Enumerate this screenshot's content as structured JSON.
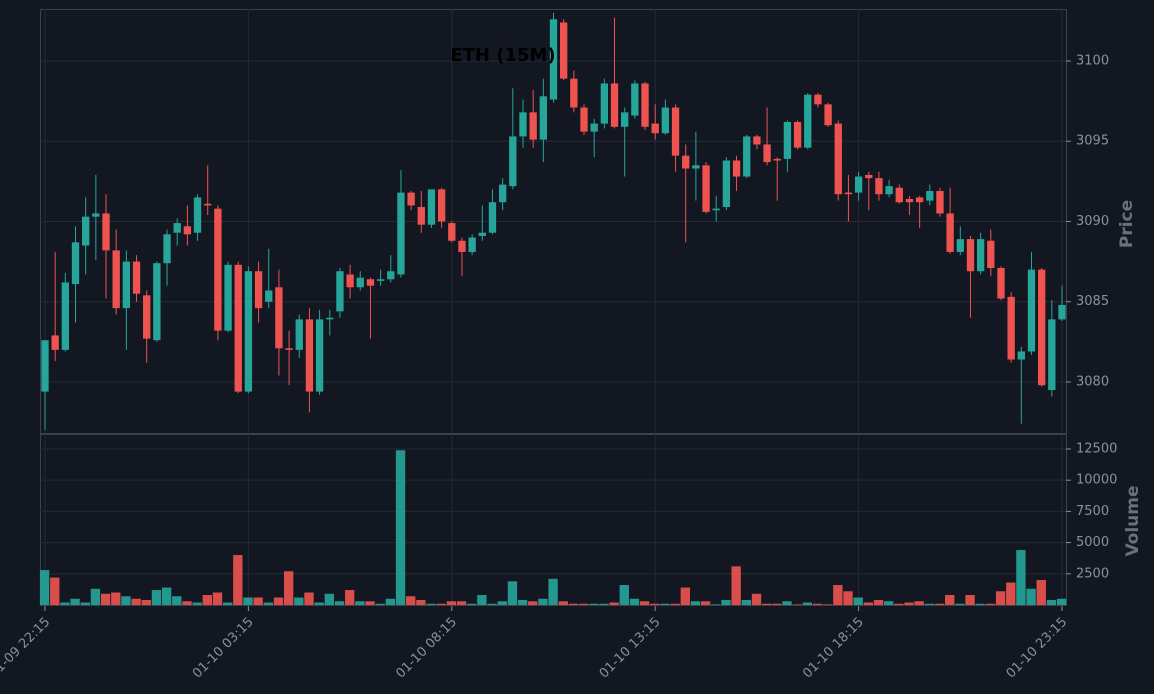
{
  "chart_data": {
    "type": "candlestick",
    "title": "ETH (15M)",
    "x": [
      "01-09 22:15",
      "01-09 22:30",
      "01-09 22:45",
      "01-09 23:00",
      "01-09 23:15",
      "01-09 23:30",
      "01-09 23:45",
      "01-10 00:00",
      "01-10 00:15",
      "01-10 00:30",
      "01-10 00:45",
      "01-10 01:00",
      "01-10 01:15",
      "01-10 01:30",
      "01-10 01:45",
      "01-10 02:00",
      "01-10 02:15",
      "01-10 02:30",
      "01-10 02:45",
      "01-10 03:00",
      "01-10 03:15",
      "01-10 03:30",
      "01-10 03:45",
      "01-10 04:00",
      "01-10 04:15",
      "01-10 04:30",
      "01-10 04:45",
      "01-10 05:00",
      "01-10 05:15",
      "01-10 05:30",
      "01-10 05:45",
      "01-10 06:00",
      "01-10 06:15",
      "01-10 06:30",
      "01-10 06:45",
      "01-10 07:00",
      "01-10 07:15",
      "01-10 07:30",
      "01-10 07:45",
      "01-10 08:00",
      "01-10 08:15",
      "01-10 08:30",
      "01-10 08:45",
      "01-10 09:00",
      "01-10 09:15",
      "01-10 09:30",
      "01-10 09:45",
      "01-10 10:00",
      "01-10 10:15",
      "01-10 10:30",
      "01-10 10:45",
      "01-10 11:00",
      "01-10 11:15",
      "01-10 11:30",
      "01-10 11:45",
      "01-10 12:00",
      "01-10 12:15",
      "01-10 12:30",
      "01-10 12:45",
      "01-10 13:00",
      "01-10 13:15",
      "01-10 13:30",
      "01-10 13:45",
      "01-10 14:00",
      "01-10 14:15",
      "01-10 14:30",
      "01-10 14:45",
      "01-10 15:00",
      "01-10 15:15",
      "01-10 15:30",
      "01-10 15:45",
      "01-10 16:00",
      "01-10 16:15",
      "01-10 16:30",
      "01-10 16:45",
      "01-10 17:00",
      "01-10 17:15",
      "01-10 17:30",
      "01-10 17:45",
      "01-10 18:00",
      "01-10 18:15",
      "01-10 18:30",
      "01-10 18:45",
      "01-10 19:00",
      "01-10 19:15",
      "01-10 19:30",
      "01-10 19:45",
      "01-10 20:00",
      "01-10 20:15",
      "01-10 20:30",
      "01-10 20:45",
      "01-10 21:00",
      "01-10 21:15",
      "01-10 21:30",
      "01-10 21:45",
      "01-10 22:00",
      "01-10 22:15",
      "01-10 22:30",
      "01-10 22:45",
      "01-10 23:00",
      "01-10 23:15"
    ],
    "open": [
      3079.4,
      3082.9,
      3082.0,
      3086.1,
      3088.5,
      3090.3,
      3090.5,
      3088.2,
      3084.6,
      3087.5,
      3085.4,
      3082.6,
      3087.4,
      3089.3,
      3089.7,
      3089.3,
      3091.1,
      3090.8,
      3083.2,
      3087.3,
      3079.4,
      3086.9,
      3085.0,
      3085.9,
      3082.1,
      3082.0,
      3083.9,
      3079.4,
      3083.9,
      3084.4,
      3086.7,
      3085.9,
      3086.4,
      3086.3,
      3086.4,
      3086.7,
      3091.8,
      3090.9,
      3089.8,
      3092.0,
      3089.9,
      3088.8,
      3088.1,
      3089.1,
      3089.3,
      3091.2,
      3092.2,
      3095.3,
      3096.8,
      3095.1,
      3097.6,
      3102.4,
      3098.9,
      3097.1,
      3095.6,
      3096.1,
      3098.6,
      3095.9,
      3096.6,
      3098.6,
      3096.1,
      3095.5,
      3097.1,
      3094.1,
      3093.3,
      3093.5,
      3090.7,
      3090.9,
      3093.8,
      3092.8,
      3095.3,
      3094.8,
      3093.9,
      3093.9,
      3096.2,
      3094.6,
      3097.9,
      3097.3,
      3096.1,
      3091.8,
      3091.8,
      3092.9,
      3092.7,
      3091.7,
      3092.1,
      3091.4,
      3091.5,
      3091.3,
      3091.9,
      3090.5,
      3088.1,
      3088.9,
      3086.9,
      3088.8,
      3087.1,
      3085.3,
      3081.4,
      3081.9,
      3087.0,
      3079.5,
      3083.9
    ],
    "high": [
      3082.6,
      3088.1,
      3086.8,
      3089.7,
      3091.5,
      3092.9,
      3091.7,
      3089.5,
      3088.2,
      3087.9,
      3085.7,
      3087.5,
      3089.5,
      3090.2,
      3091.0,
      3091.7,
      3093.5,
      3091.0,
      3087.5,
      3087.5,
      3087.2,
      3087.5,
      3088.3,
      3087.0,
      3083.2,
      3084.2,
      3084.6,
      3084.5,
      3084.5,
      3087.1,
      3087.3,
      3086.9,
      3086.5,
      3087.0,
      3087.9,
      3093.2,
      3091.9,
      3091.9,
      3092.0,
      3092.1,
      3090.0,
      3089.0,
      3089.2,
      3091.0,
      3092.0,
      3092.7,
      3098.3,
      3097.6,
      3098.2,
      3098.9,
      3103.0,
      3102.6,
      3099.4,
      3097.3,
      3096.4,
      3098.9,
      3102.7,
      3097.1,
      3098.8,
      3098.7,
      3097.3,
      3097.6,
      3097.3,
      3094.8,
      3095.6,
      3093.7,
      3091.6,
      3094.0,
      3094.1,
      3095.4,
      3095.4,
      3097.1,
      3094.0,
      3096.3,
      3096.3,
      3098.0,
      3098.0,
      3097.4,
      3096.3,
      3092.9,
      3093.1,
      3093.1,
      3093.1,
      3092.6,
      3092.3,
      3091.6,
      3091.6,
      3092.3,
      3092.1,
      3092.1,
      3089.7,
      3089.1,
      3089.3,
      3089.5,
      3087.2,
      3085.6,
      3082.2,
      3088.1,
      3087.1,
      3085.1,
      3086.0
    ],
    "low": [
      3077.0,
      3081.3,
      3081.9,
      3083.7,
      3086.7,
      3087.6,
      3085.2,
      3084.2,
      3082.0,
      3085.0,
      3081.2,
      3082.5,
      3086.0,
      3088.5,
      3088.5,
      3088.8,
      3090.4,
      3082.6,
      3083.1,
      3079.3,
      3079.3,
      3083.7,
      3084.6,
      3080.4,
      3079.8,
      3081.5,
      3078.1,
      3079.2,
      3082.9,
      3084.0,
      3085.2,
      3085.7,
      3082.7,
      3086.0,
      3086.2,
      3086.5,
      3090.7,
      3089.3,
      3089.6,
      3089.6,
      3088.7,
      3086.6,
      3087.9,
      3088.8,
      3089.2,
      3090.7,
      3092.0,
      3094.6,
      3094.6,
      3093.7,
      3097.4,
      3098.8,
      3096.8,
      3095.4,
      3094.0,
      3095.8,
      3095.8,
      3092.8,
      3096.4,
      3095.7,
      3095.1,
      3095.4,
      3093.1,
      3088.7,
      3091.3,
      3090.5,
      3090.0,
      3090.7,
      3091.9,
      3092.7,
      3094.5,
      3093.5,
      3091.3,
      3093.1,
      3094.5,
      3094.5,
      3097.1,
      3095.9,
      3091.3,
      3090.0,
      3091.3,
      3090.7,
      3091.3,
      3091.5,
      3091.1,
      3090.4,
      3089.6,
      3091.0,
      3090.3,
      3088.0,
      3087.9,
      3084.0,
      3086.7,
      3086.6,
      3085.1,
      3081.2,
      3077.4,
      3081.7,
      3079.7,
      3079.1,
      3083.8
    ],
    "close": [
      3082.6,
      3082.0,
      3086.2,
      3088.7,
      3090.3,
      3090.5,
      3088.2,
      3084.6,
      3087.5,
      3085.5,
      3082.7,
      3087.4,
      3089.2,
      3089.9,
      3089.2,
      3091.5,
      3091.0,
      3083.2,
      3087.3,
      3079.4,
      3086.9,
      3084.6,
      3085.7,
      3082.1,
      3082.0,
      3083.9,
      3079.4,
      3083.9,
      3084.0,
      3086.9,
      3085.9,
      3086.5,
      3086.0,
      3086.4,
      3086.9,
      3091.8,
      3091.0,
      3089.8,
      3092.0,
      3090.0,
      3088.8,
      3088.1,
      3089.0,
      3089.3,
      3091.2,
      3092.3,
      3095.3,
      3096.8,
      3095.1,
      3097.8,
      3102.6,
      3098.9,
      3097.1,
      3095.6,
      3096.1,
      3098.6,
      3095.9,
      3096.8,
      3098.6,
      3095.9,
      3095.5,
      3097.1,
      3094.1,
      3093.3,
      3093.5,
      3090.6,
      3090.8,
      3093.8,
      3092.8,
      3095.3,
      3094.8,
      3093.7,
      3093.8,
      3096.2,
      3094.6,
      3097.9,
      3097.3,
      3096.0,
      3091.7,
      3091.7,
      3092.8,
      3092.7,
      3091.7,
      3092.2,
      3091.2,
      3091.2,
      3091.2,
      3091.9,
      3090.5,
      3088.1,
      3088.9,
      3086.9,
      3088.9,
      3087.1,
      3085.2,
      3081.4,
      3081.9,
      3087.0,
      3079.8,
      3083.9,
      3084.8
    ],
    "volume": [
      2800,
      2200,
      200,
      500,
      200,
      1300,
      900,
      1000,
      700,
      500,
      400,
      1200,
      1400,
      700,
      300,
      200,
      800,
      1000,
      200,
      4000,
      600,
      600,
      200,
      600,
      2700,
      600,
      1000,
      200,
      900,
      300,
      1200,
      300,
      300,
      100,
      500,
      12400,
      700,
      400,
      100,
      100,
      300,
      300,
      100,
      800,
      100,
      300,
      1900,
      400,
      300,
      500,
      2100,
      300,
      100,
      100,
      100,
      100,
      200,
      1600,
      500,
      300,
      100,
      100,
      100,
      1400,
      300,
      300,
      50,
      400,
      3100,
      400,
      900,
      100,
      100,
      300,
      50,
      200,
      100,
      50,
      1600,
      1100,
      600,
      200,
      400,
      300,
      100,
      200,
      300,
      100,
      100,
      800,
      100,
      800,
      100,
      100,
      1100,
      1800,
      4400,
      1300,
      2000,
      400,
      500
    ],
    "xticks": [
      "01-09 22:15",
      "01-10 03:15",
      "01-10 08:15",
      "01-10 13:15",
      "01-10 18:15",
      "01-10 23:15"
    ],
    "ylabel": "Price",
    "ylim": [
      3076.82,
      3103.24
    ],
    "yticks": [
      3080,
      3085,
      3090,
      3095,
      3100
    ],
    "volume_ylabel": "Volume",
    "volume_ylim": [
      0,
      13700
    ],
    "volume_yticks": [
      2500,
      5000,
      7500,
      10000,
      12500
    ],
    "up_color": "#26a69a",
    "down_color": "#ef5350",
    "grid": true
  }
}
